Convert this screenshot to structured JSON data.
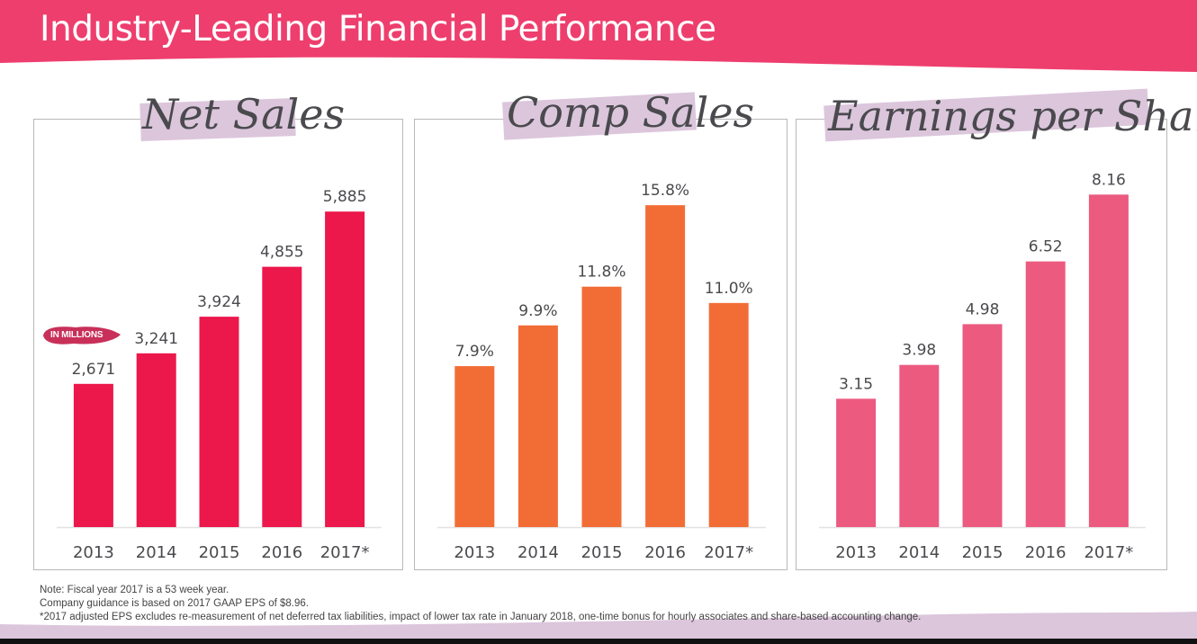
{
  "header": {
    "title": "Industry-Leading Financial Performance"
  },
  "colors": {
    "banner": "#ee3e6d",
    "highlight": "#dcc6dc",
    "axis_text": "#4a4a4e"
  },
  "badge": {
    "label": "IN MILLIONS"
  },
  "footnotes": [
    "Note: Fiscal year 2017 is a 53 week year.",
    "Company guidance is based on 2017 GAAP EPS of $8.96.",
    "*2017 adjusted EPS excludes re-measurement of net deferred tax liabilities, impact of lower tax rate in January 2018, one-time bonus for hourly associates and share-based accounting change."
  ],
  "chart_data": [
    {
      "type": "bar",
      "title": "Net Sales",
      "unit_note": "IN MILLIONS",
      "categories": [
        "2013",
        "2014",
        "2015",
        "2016",
        "2017*"
      ],
      "values": [
        2671,
        3241,
        3924,
        4855,
        5885
      ],
      "labels": [
        "2,671",
        "3,241",
        "3,924",
        "4,855",
        "5,885"
      ],
      "color": "#ec174b",
      "ylim": [
        0,
        7600
      ],
      "grid": false
    },
    {
      "type": "bar",
      "title": "Comp Sales",
      "categories": [
        "2013",
        "2014",
        "2015",
        "2016",
        "2017*"
      ],
      "values": [
        7.9,
        9.9,
        11.8,
        15.8,
        11.0
      ],
      "labels": [
        "7.9%",
        "9.9%",
        "11.8%",
        "15.8%",
        "11.0%"
      ],
      "color": "#f26d36",
      "ylim": [
        0,
        20.0
      ],
      "grid": false
    },
    {
      "type": "bar",
      "title": "Earnings per Share",
      "categories": [
        "2013",
        "2014",
        "2015",
        "2016",
        "2017*"
      ],
      "values": [
        3.15,
        3.98,
        4.98,
        6.52,
        8.16
      ],
      "labels": [
        "3.15",
        "3.98",
        "4.98",
        "6.52",
        "8.16"
      ],
      "color": "#ec5a80",
      "ylim": [
        0,
        10.0
      ],
      "grid": false
    }
  ]
}
